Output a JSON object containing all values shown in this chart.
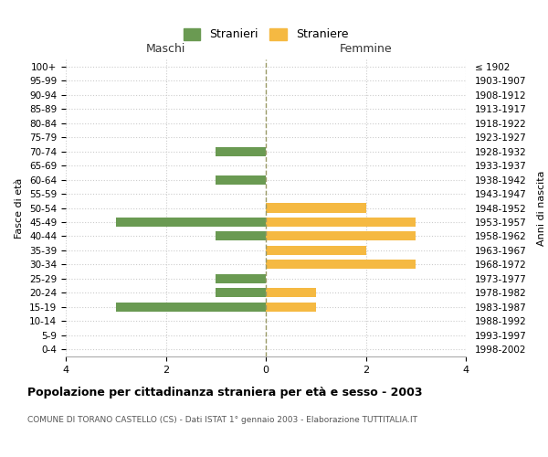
{
  "age_groups": [
    "100+",
    "95-99",
    "90-94",
    "85-89",
    "80-84",
    "75-79",
    "70-74",
    "65-69",
    "60-64",
    "55-59",
    "50-54",
    "45-49",
    "40-44",
    "35-39",
    "30-34",
    "25-29",
    "20-24",
    "15-19",
    "10-14",
    "5-9",
    "0-4"
  ],
  "birth_years": [
    "≤ 1902",
    "1903-1907",
    "1908-1912",
    "1913-1917",
    "1918-1922",
    "1923-1927",
    "1928-1932",
    "1933-1937",
    "1938-1942",
    "1943-1947",
    "1948-1952",
    "1953-1957",
    "1958-1962",
    "1963-1967",
    "1968-1972",
    "1973-1977",
    "1978-1982",
    "1983-1987",
    "1988-1992",
    "1993-1997",
    "1998-2002"
  ],
  "males": [
    0,
    0,
    0,
    0,
    0,
    0,
    1,
    0,
    1,
    0,
    0,
    3,
    1,
    0,
    0,
    1,
    1,
    3,
    0,
    0,
    0
  ],
  "females": [
    0,
    0,
    0,
    0,
    0,
    0,
    0,
    0,
    0,
    0,
    2,
    3,
    3,
    2,
    3,
    0,
    1,
    1,
    0,
    0,
    0
  ],
  "male_color": "#6a9a52",
  "female_color": "#f5b942",
  "title": "Popolazione per cittadinanza straniera per età e sesso - 2003",
  "subtitle": "COMUNE DI TORANO CASTELLO (CS) - Dati ISTAT 1° gennaio 2003 - Elaborazione TUTTITALIA.IT",
  "legend_male": "Stranieri",
  "legend_female": "Straniere",
  "xlabel_left": "Maschi",
  "xlabel_right": "Femmine",
  "ylabel_left": "Fasce di età",
  "ylabel_right": "Anni di nascita",
  "xlim": 4,
  "background_color": "#ffffff",
  "grid_color": "#cccccc"
}
